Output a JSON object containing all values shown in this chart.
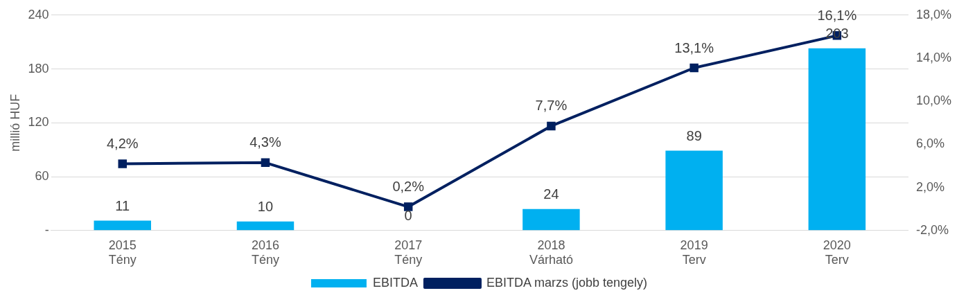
{
  "chart_data": {
    "type": "bar",
    "ylabel": "millió HUF",
    "categories": [
      "2015\nTény",
      "2016\nTény",
      "2017\nTény",
      "2018\nVárható",
      "2019\nTerv",
      "2020\nTerv"
    ],
    "series": [
      {
        "name": "EBITDA",
        "color": "#00b0f0",
        "values": [
          11,
          10,
          0,
          24,
          89,
          203
        ]
      },
      {
        "name": "EBITDA marzs (jobb tengely)",
        "type": "line",
        "axis": "y2",
        "color": "#002060",
        "marker": "square",
        "values": [
          4.2,
          4.3,
          0.2,
          7.7,
          13.1,
          16.1
        ],
        "value_labels": [
          "4,2%",
          "4,3%",
          "0,2%",
          "7,7%",
          "13,1%",
          "16,1%"
        ]
      }
    ],
    "data_labels": true,
    "ylim": [
      0,
      240
    ],
    "yticks": [
      {
        "value": 0,
        "label": "-"
      },
      60,
      120,
      180,
      240
    ],
    "y2lim": [
      -2,
      18
    ],
    "y2ticks": [
      {
        "value": -2,
        "label": "-2,0%"
      },
      {
        "value": 2,
        "label": "2,0%"
      },
      {
        "value": 6,
        "label": "6,0%"
      },
      {
        "value": 10,
        "label": "10,0%"
      },
      {
        "value": 14,
        "label": "14,0%"
      },
      {
        "value": 18,
        "label": "18,0%"
      }
    ],
    "grid": "y",
    "legend": "bottom"
  }
}
